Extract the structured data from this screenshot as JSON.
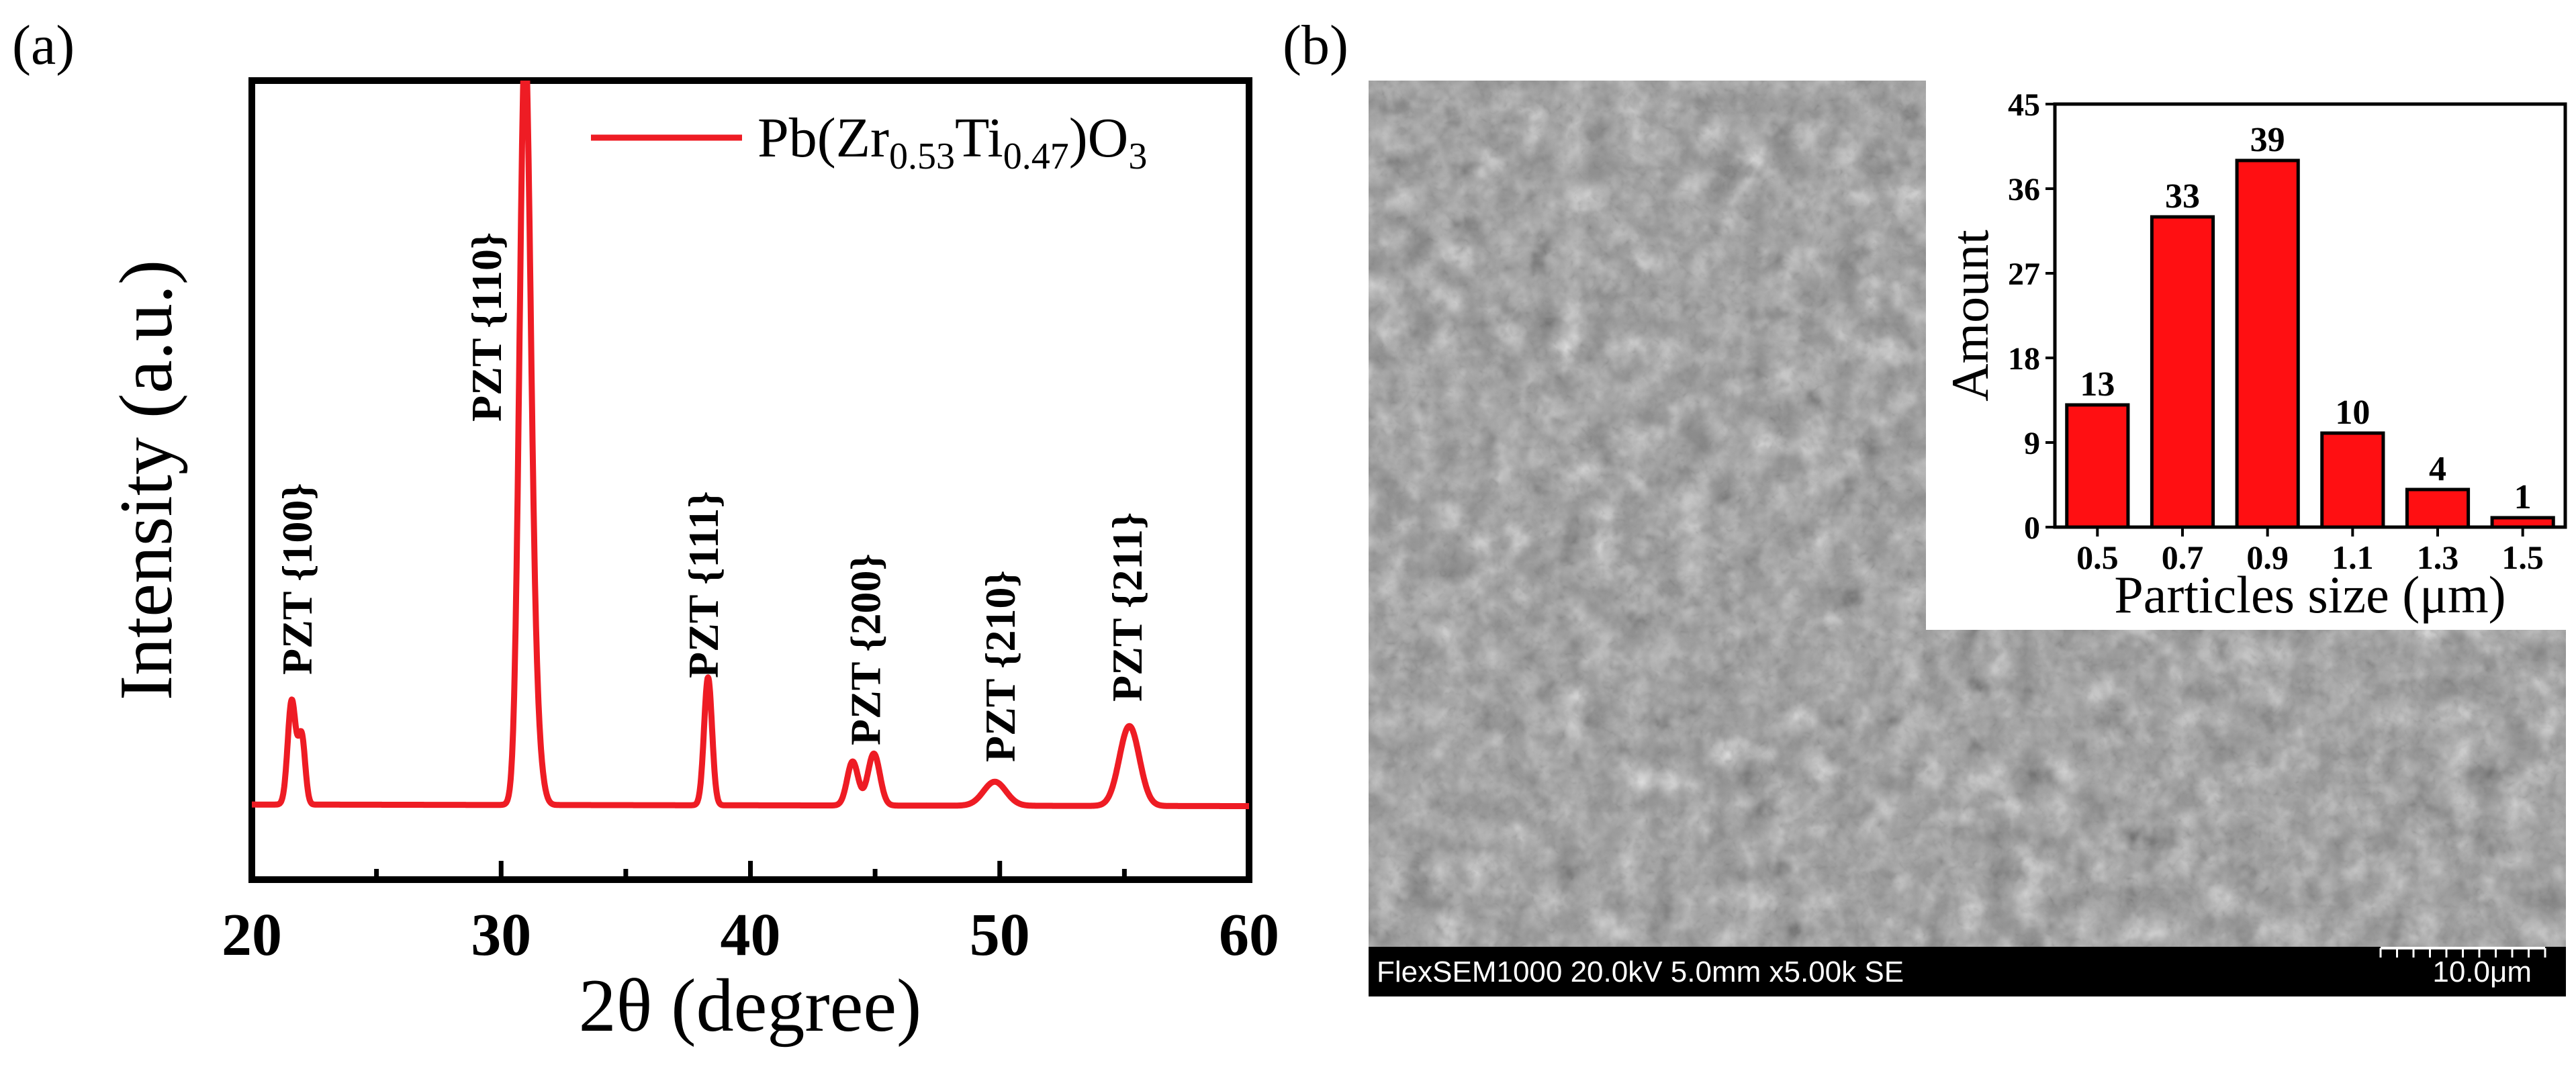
{
  "panels": {
    "a": {
      "label": "(a)"
    },
    "b": {
      "label": "(b)"
    }
  },
  "colors": {
    "series": "#ee1c24",
    "bar": "#ff0f12",
    "axis": "#000000",
    "sem_bar": "#000000",
    "sem_text": "#ffffff"
  },
  "chart_data": [
    {
      "id": "xrd",
      "type": "line",
      "title": "",
      "xlabel": "2θ (degree)",
      "ylabel": "Intensity (a.u.)",
      "xlim": [
        20,
        60
      ],
      "ylim": [
        0,
        1.0
      ],
      "x_ticks": [
        20,
        30,
        40,
        50,
        60
      ],
      "x_tick_labels": [
        "20",
        "30",
        "40",
        "50",
        "60"
      ],
      "legend": {
        "position": "top-right",
        "prefix": "Pb(Zr",
        "sub1": "0.53",
        "mid": "Ti",
        "sub2": "0.47",
        "close": ")O",
        "sub3": "3"
      },
      "series": [
        {
          "name": "Pb(Zr0.53Ti0.47)O3",
          "baseline": 0.094,
          "peaks": [
            {
              "x": 21.6,
              "h": 0.13,
              "w": 0.16
            },
            {
              "x": 22.0,
              "h": 0.085,
              "w": 0.14
            },
            {
              "x": 30.95,
              "h": 0.91,
              "w": 0.22
            },
            {
              "x": 31.3,
              "h": 0.12,
              "w": 0.25
            },
            {
              "x": 38.3,
              "h": 0.16,
              "w": 0.16
            },
            {
              "x": 44.1,
              "h": 0.055,
              "w": 0.22
            },
            {
              "x": 44.95,
              "h": 0.065,
              "w": 0.24
            },
            {
              "x": 49.8,
              "h": 0.03,
              "w": 0.45
            },
            {
              "x": 55.2,
              "h": 0.1,
              "w": 0.4
            }
          ]
        }
      ],
      "annotations": [
        {
          "text": "PZT {100}",
          "x": 21.8
        },
        {
          "text": "PZT {110}",
          "x": 29.4
        },
        {
          "text": "PZT {111}",
          "x": 38.1
        },
        {
          "text": "PZT {200}",
          "x": 44.6
        },
        {
          "text": "PZT {210}",
          "x": 50.0
        },
        {
          "text": "PZT {211}",
          "x": 55.1
        }
      ]
    },
    {
      "id": "size-histogram",
      "type": "bar",
      "title": "",
      "xlabel": "Particles size (μm)",
      "ylabel": "Amount",
      "categories": [
        "0.5",
        "0.7",
        "0.9",
        "1.1",
        "1.3",
        "1.5"
      ],
      "values": [
        13,
        33,
        39,
        10,
        4,
        1
      ],
      "value_labels": [
        "13",
        "33",
        "39",
        "10",
        "4",
        "1"
      ],
      "ylim": [
        0,
        45
      ],
      "y_ticks": [
        0,
        9,
        18,
        27,
        36,
        45
      ],
      "y_tick_labels": [
        "0",
        "9",
        "18",
        "27",
        "36",
        "45"
      ]
    }
  ],
  "sem": {
    "info": "FlexSEM1000 20.0kV 5.0mm x5.00k SE",
    "scale": "10.0μm"
  }
}
